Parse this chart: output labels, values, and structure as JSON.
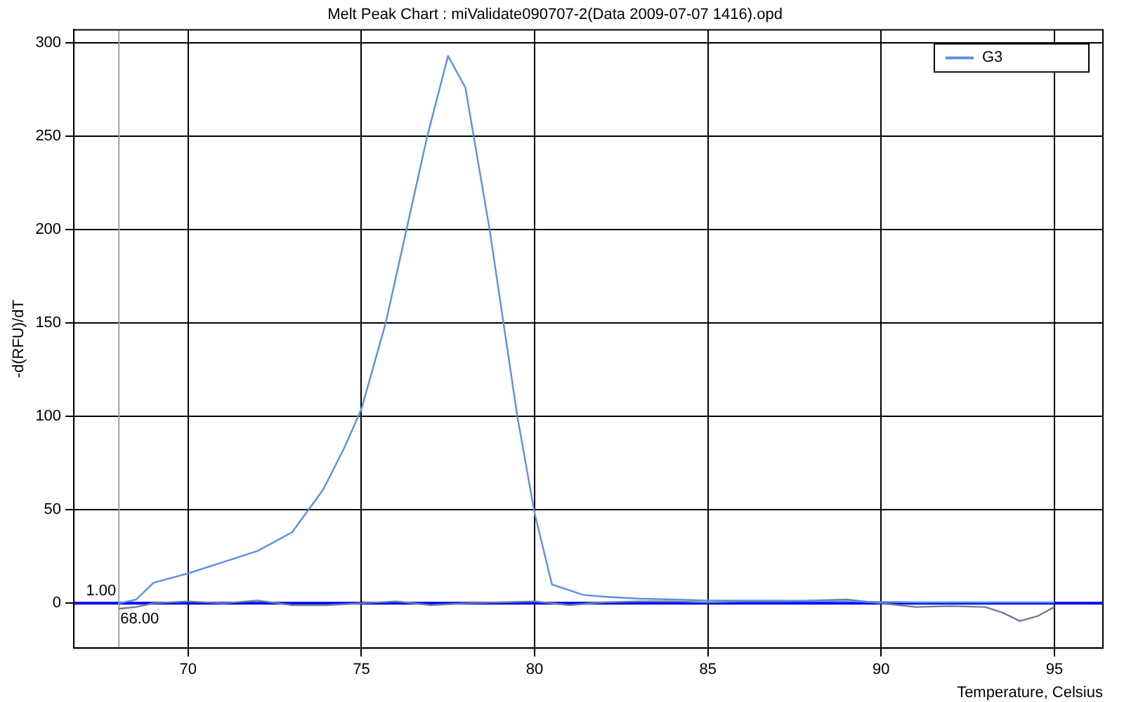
{
  "chart_data": {
    "type": "line",
    "title": "Melt Peak Chart : miValidate090707-2(Data 2009-07-07 1416).opd",
    "xlabel": "Temperature, Celsius",
    "ylabel": "-d(RFU)/dT",
    "xlim": [
      66.7,
      96.4
    ],
    "xticks": [
      70,
      75,
      80,
      85,
      90,
      95
    ],
    "ylim": [
      -24,
      307
    ],
    "yticks": [
      0,
      50,
      100,
      150,
      200,
      250,
      300
    ],
    "grid": true,
    "legend": "top right",
    "marker": "none",
    "line_style": "solid",
    "series": [
      {
        "name": "G3",
        "color": "#5b8fe8",
        "x": [
          68,
          68.5,
          69,
          70,
          71,
          72,
          73,
          73.9,
          74.5,
          75,
          75.7,
          76.3,
          76.9,
          77.5,
          78,
          78.7,
          79.1,
          79.5,
          80,
          80.5,
          81.4,
          82,
          83,
          84,
          85,
          87,
          89,
          91,
          93,
          95
        ],
        "values": [
          0,
          2,
          11,
          16,
          22,
          28,
          38,
          61,
          83,
          104,
          150,
          200,
          250,
          293,
          276,
          200,
          150,
          100,
          48,
          10,
          4.5,
          3.5,
          2.5,
          2,
          1.5,
          1.5,
          1,
          0.5,
          0.5,
          0.5
        ]
      },
      {
        "color": "#6b7f99",
        "x": [
          68,
          68.5,
          69,
          70,
          71,
          72,
          73,
          74,
          75,
          76,
          77,
          78,
          79,
          80,
          81,
          82,
          83,
          84,
          85,
          86,
          87,
          88,
          89,
          90,
          91,
          92,
          93,
          93.5,
          94,
          94.5,
          95
        ],
        "values": [
          -3,
          -2,
          0,
          1,
          0,
          1.5,
          -1,
          -1,
          0,
          1,
          -1,
          0,
          0.5,
          1,
          -1,
          0.5,
          1,
          1,
          0.5,
          1,
          1,
          1.5,
          2,
          0,
          -2,
          -1.5,
          -2,
          -5,
          -9.5,
          -7,
          -2
        ]
      }
    ],
    "ref_lines": [
      {
        "axis": "y",
        "value": 0,
        "color": "#0000ff"
      },
      {
        "axis": "x",
        "value": 68,
        "label": "68.00",
        "color": "#a0a0a0"
      }
    ],
    "annotations": [
      {
        "text": "1.00",
        "x": 68,
        "y": 1
      }
    ]
  }
}
